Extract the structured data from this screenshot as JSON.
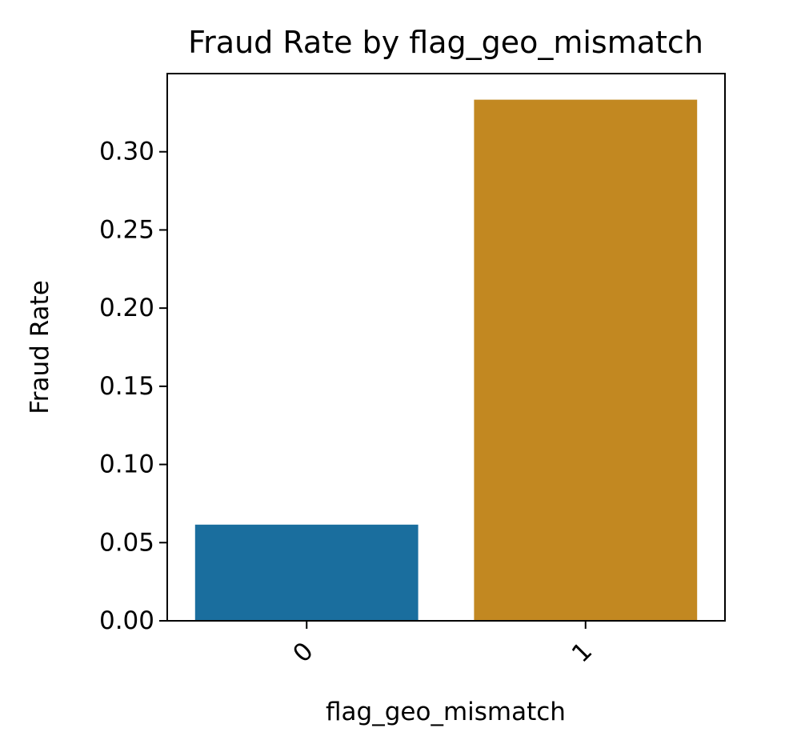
{
  "chart_data": {
    "type": "bar",
    "title": "Fraud Rate by flag_geo_mismatch",
    "xlabel": "flag_geo_mismatch",
    "ylabel": "Fraud Rate",
    "categories": [
      "0",
      "1"
    ],
    "values": [
      0.0615,
      0.3333
    ],
    "colors": [
      "#1a6e9e",
      "#c28821"
    ],
    "ylim": [
      0,
      0.35
    ],
    "yticks": [
      "0.00",
      "0.05",
      "0.10",
      "0.15",
      "0.20",
      "0.25",
      "0.30"
    ],
    "x_tick_rotation_deg": 45,
    "grid": false,
    "legend": "none"
  }
}
